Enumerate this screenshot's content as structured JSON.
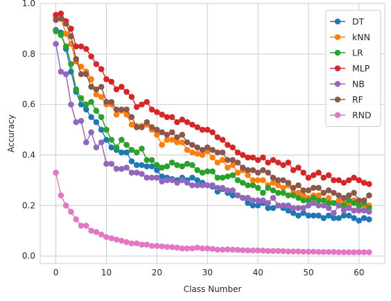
{
  "chart_data": {
    "type": "line",
    "title": "",
    "xlabel": "Class Number",
    "ylabel": "Accuracy",
    "xlim": [
      -3.1,
      65.1
    ],
    "ylim": [
      -0.03,
      1.0
    ],
    "xticks": [
      0,
      10,
      20,
      30,
      40,
      50,
      60
    ],
    "yticks": [
      0.0,
      0.2,
      0.4,
      0.6,
      0.8,
      1.0
    ],
    "xtick_labels": [
      "0",
      "10",
      "20",
      "30",
      "40",
      "50",
      "60"
    ],
    "ytick_labels": [
      "0.0",
      "0.2",
      "0.4",
      "0.6",
      "0.8",
      "1.0"
    ],
    "grid": true,
    "legend_position": "top-right",
    "x": [
      0,
      1,
      2,
      3,
      4,
      5,
      6,
      7,
      8,
      9,
      10,
      11,
      12,
      13,
      14,
      15,
      16,
      17,
      18,
      19,
      20,
      21,
      22,
      23,
      24,
      25,
      26,
      27,
      28,
      29,
      30,
      31,
      32,
      33,
      34,
      35,
      36,
      37,
      38,
      39,
      40,
      41,
      42,
      43,
      44,
      45,
      46,
      47,
      48,
      49,
      50,
      51,
      52,
      53,
      54,
      55,
      56,
      57,
      58,
      59,
      60,
      61,
      62
    ],
    "series": [
      {
        "name": "DT",
        "color": "#1f77b4",
        "values": [
          0.895,
          0.885,
          0.82,
          0.73,
          0.65,
          0.6,
          0.58,
          0.55,
          0.53,
          0.5,
          0.46,
          0.43,
          0.42,
          0.41,
          0.41,
          0.375,
          0.36,
          0.36,
          0.355,
          0.355,
          0.34,
          0.315,
          0.31,
          0.305,
          0.3,
          0.31,
          0.3,
          0.31,
          0.3,
          0.29,
          0.28,
          0.275,
          0.255,
          0.265,
          0.25,
          0.24,
          0.24,
          0.23,
          0.21,
          0.2,
          0.2,
          0.21,
          0.19,
          0.19,
          0.2,
          0.19,
          0.18,
          0.17,
          0.16,
          0.17,
          0.16,
          0.16,
          0.16,
          0.15,
          0.16,
          0.15,
          0.15,
          0.16,
          0.16,
          0.15,
          0.14,
          0.15,
          0.145
        ]
      },
      {
        "name": "kNN",
        "color": "#ff7f0e",
        "values": [
          0.945,
          0.94,
          0.88,
          0.84,
          0.77,
          0.75,
          0.73,
          0.7,
          0.64,
          0.63,
          0.6,
          0.6,
          0.56,
          0.575,
          0.56,
          0.52,
          0.515,
          0.515,
          0.52,
          0.5,
          0.48,
          0.44,
          0.46,
          0.46,
          0.45,
          0.45,
          0.42,
          0.41,
          0.405,
          0.4,
          0.415,
          0.39,
          0.37,
          0.38,
          0.35,
          0.36,
          0.33,
          0.34,
          0.32,
          0.3,
          0.3,
          0.3,
          0.28,
          0.29,
          0.28,
          0.27,
          0.28,
          0.25,
          0.25,
          0.24,
          0.23,
          0.24,
          0.24,
          0.22,
          0.23,
          0.21,
          0.22,
          0.21,
          0.2,
          0.22,
          0.19,
          0.2,
          0.2
        ]
      },
      {
        "name": "LR",
        "color": "#2ca02c",
        "values": [
          0.89,
          0.875,
          0.83,
          0.76,
          0.66,
          0.625,
          0.6,
          0.61,
          0.575,
          0.55,
          0.5,
          0.46,
          0.43,
          0.46,
          0.44,
          0.42,
          0.41,
          0.425,
          0.38,
          0.38,
          0.36,
          0.35,
          0.355,
          0.37,
          0.36,
          0.355,
          0.365,
          0.36,
          0.34,
          0.33,
          0.335,
          0.335,
          0.31,
          0.31,
          0.315,
          0.32,
          0.3,
          0.29,
          0.28,
          0.28,
          0.27,
          0.25,
          0.27,
          0.26,
          0.25,
          0.25,
          0.24,
          0.24,
          0.23,
          0.22,
          0.22,
          0.23,
          0.22,
          0.22,
          0.21,
          0.21,
          0.2,
          0.2,
          0.22,
          0.21,
          0.2,
          0.21,
          0.19
        ]
      },
      {
        "name": "MLP",
        "color": "#d62728",
        "values": [
          0.955,
          0.96,
          0.93,
          0.9,
          0.83,
          0.83,
          0.82,
          0.79,
          0.76,
          0.74,
          0.7,
          0.69,
          0.66,
          0.67,
          0.65,
          0.63,
          0.59,
          0.6,
          0.61,
          0.58,
          0.57,
          0.56,
          0.55,
          0.55,
          0.53,
          0.54,
          0.53,
          0.52,
          0.51,
          0.5,
          0.5,
          0.49,
          0.47,
          0.46,
          0.44,
          0.43,
          0.41,
          0.4,
          0.39,
          0.39,
          0.38,
          0.39,
          0.37,
          0.38,
          0.37,
          0.36,
          0.37,
          0.34,
          0.35,
          0.33,
          0.31,
          0.32,
          0.33,
          0.31,
          0.32,
          0.3,
          0.3,
          0.29,
          0.3,
          0.31,
          0.3,
          0.29,
          0.285
        ]
      },
      {
        "name": "NB",
        "color": "#9467bd",
        "values": [
          0.84,
          0.73,
          0.72,
          0.6,
          0.53,
          0.535,
          0.45,
          0.49,
          0.43,
          0.45,
          0.365,
          0.365,
          0.345,
          0.345,
          0.35,
          0.33,
          0.33,
          0.325,
          0.31,
          0.31,
          0.31,
          0.295,
          0.3,
          0.3,
          0.29,
          0.3,
          0.29,
          0.28,
          0.28,
          0.28,
          0.28,
          0.28,
          0.27,
          0.27,
          0.26,
          0.26,
          0.24,
          0.23,
          0.23,
          0.22,
          0.22,
          0.22,
          0.21,
          0.23,
          0.2,
          0.2,
          0.2,
          0.19,
          0.19,
          0.19,
          0.2,
          0.21,
          0.2,
          0.2,
          0.19,
          0.17,
          0.2,
          0.18,
          0.19,
          0.18,
          0.18,
          0.18,
          0.175
        ]
      },
      {
        "name": "RF",
        "color": "#8c564b",
        "values": [
          0.935,
          0.94,
          0.92,
          0.87,
          0.78,
          0.72,
          0.72,
          0.67,
          0.66,
          0.67,
          0.61,
          0.61,
          0.58,
          0.58,
          0.58,
          0.55,
          0.51,
          0.51,
          0.53,
          0.51,
          0.5,
          0.49,
          0.48,
          0.49,
          0.47,
          0.48,
          0.45,
          0.44,
          0.43,
          0.42,
          0.43,
          0.42,
          0.41,
          0.41,
          0.38,
          0.38,
          0.37,
          0.35,
          0.34,
          0.34,
          0.33,
          0.34,
          0.33,
          0.31,
          0.3,
          0.3,
          0.29,
          0.27,
          0.28,
          0.26,
          0.26,
          0.27,
          0.27,
          0.25,
          0.26,
          0.25,
          0.24,
          0.23,
          0.24,
          0.25,
          0.22,
          0.22,
          0.24
        ]
      },
      {
        "name": "RND",
        "color": "#e377c2",
        "values": [
          0.33,
          0.24,
          0.2,
          0.175,
          0.145,
          0.12,
          0.12,
          0.1,
          0.095,
          0.085,
          0.075,
          0.07,
          0.065,
          0.06,
          0.055,
          0.05,
          0.05,
          0.045,
          0.045,
          0.04,
          0.04,
          0.038,
          0.036,
          0.035,
          0.033,
          0.03,
          0.03,
          0.03,
          0.033,
          0.03,
          0.03,
          0.028,
          0.025,
          0.025,
          0.026,
          0.025,
          0.024,
          0.023,
          0.022,
          0.022,
          0.022,
          0.021,
          0.02,
          0.02,
          0.02,
          0.019,
          0.018,
          0.018,
          0.018,
          0.017,
          0.017,
          0.017,
          0.016,
          0.016,
          0.016,
          0.016,
          0.015,
          0.015,
          0.015,
          0.015,
          0.015,
          0.015,
          0.015
        ]
      }
    ]
  }
}
